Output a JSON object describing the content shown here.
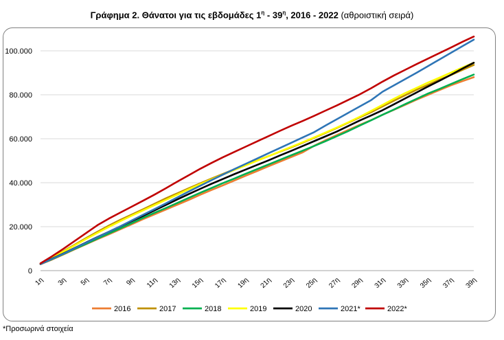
{
  "title": {
    "main": "Γράφημα 2. Θάνατοι για τις εβδομάδες 1",
    "sup1": "η",
    "mid": " - 39",
    "sup2": "η",
    "years": ", 2016 - 2022",
    "suffix": " (αθροιστική σειρά)"
  },
  "footnote": "*Προσωρινά στοιχεία",
  "chart_data": {
    "type": "line",
    "title": "Γράφημα 2. Θάνατοι για τις εβδομάδες 1η - 39η, 2016 - 2022 (αθροιστική σειρά)",
    "xlabel": "",
    "ylabel": "",
    "ylim": [
      0,
      110000
    ],
    "yticks": [
      0,
      20000,
      40000,
      60000,
      80000,
      100000
    ],
    "ytick_labels": [
      "0",
      "20.000",
      "40.000",
      "60.000",
      "80.000",
      "100.000"
    ],
    "grid": "horizontal",
    "legend_position": "bottom",
    "x": [
      "1η",
      "2η",
      "3η",
      "4η",
      "5η",
      "6η",
      "7η",
      "8η",
      "9η",
      "10η",
      "11η",
      "12η",
      "13η",
      "14η",
      "15η",
      "16η",
      "17η",
      "18η",
      "19η",
      "20η",
      "21η",
      "22η",
      "23η",
      "24η",
      "25η",
      "26η",
      "27η",
      "28η",
      "29η",
      "30η",
      "31η",
      "32η",
      "33η",
      "34η",
      "35η",
      "36η",
      "37η",
      "38η",
      "39η"
    ],
    "xtick_labels": [
      "1η",
      "3η",
      "5η",
      "7η",
      "9η",
      "11η",
      "13η",
      "15η",
      "17η",
      "19η",
      "21η",
      "23η",
      "25η",
      "27η",
      "29η",
      "31η",
      "33η",
      "35η",
      "37η",
      "39η"
    ],
    "series": [
      {
        "name": "2016",
        "color": "#ed7d31",
        "values": [
          2900,
          5000,
          7300,
          9700,
          12000,
          14300,
          16500,
          18800,
          21100,
          23400,
          25600,
          27800,
          30000,
          32200,
          34500,
          36700,
          38800,
          41000,
          43200,
          45300,
          47500,
          49600,
          51700,
          53800,
          56800,
          59300,
          61700,
          64000,
          66300,
          68500,
          70900,
          73200,
          75500,
          77800,
          80000,
          82200,
          84300,
          86200,
          88000
        ]
      },
      {
        "name": "2017",
        "color": "#bf9000",
        "values": [
          3100,
          5900,
          8800,
          11800,
          14800,
          17700,
          20500,
          23100,
          25500,
          27900,
          30400,
          32900,
          35200,
          37500,
          39700,
          41900,
          44000,
          46100,
          48100,
          50100,
          52100,
          54100,
          56100,
          58200,
          60400,
          62600,
          64900,
          67300,
          69700,
          72100,
          74700,
          77300,
          79800,
          82300,
          84600,
          86900,
          89000,
          91300,
          93600
        ]
      },
      {
        "name": "2018",
        "color": "#00b050",
        "values": [
          3000,
          5200,
          7500,
          9900,
          12200,
          14600,
          16900,
          19200,
          21600,
          24000,
          26300,
          28500,
          30800,
          33100,
          35400,
          37600,
          39800,
          41900,
          44100,
          46200,
          48300,
          50400,
          52500,
          54600,
          56700,
          58900,
          61200,
          63500,
          66000,
          68400,
          70900,
          73300,
          75800,
          78200,
          80600,
          82700,
          84900,
          87100,
          89200
        ]
      },
      {
        "name": "2019",
        "color": "#ffff00",
        "values": [
          3000,
          5700,
          8600,
          11500,
          14400,
          17200,
          19900,
          22500,
          25000,
          27400,
          29800,
          32200,
          34600,
          37000,
          39300,
          41500,
          43700,
          45800,
          47900,
          50000,
          52100,
          54200,
          56300,
          58400,
          60600,
          62800,
          65100,
          67500,
          70000,
          72700,
          75400,
          78200,
          80800,
          83200,
          85600,
          87800,
          90100,
          92400,
          94600
        ]
      },
      {
        "name": "2020",
        "color": "#000000",
        "values": [
          3000,
          5400,
          7800,
          10300,
          12800,
          15300,
          17700,
          20100,
          22500,
          24900,
          27400,
          29900,
          32400,
          34800,
          37200,
          39500,
          41700,
          43900,
          46000,
          48100,
          50200,
          52400,
          54500,
          56700,
          58900,
          61100,
          63300,
          65800,
          68300,
          70600,
          73000,
          75700,
          78400,
          81100,
          83800,
          86400,
          89100,
          91900,
          94600
        ]
      },
      {
        "name": "2021*",
        "color": "#2e75b6",
        "values": [
          3000,
          5300,
          7700,
          10200,
          12700,
          15200,
          17700,
          20200,
          22800,
          25400,
          28000,
          30600,
          33300,
          36000,
          38600,
          41200,
          43700,
          46200,
          48600,
          51000,
          53400,
          55800,
          58200,
          60600,
          63000,
          66000,
          68900,
          71800,
          74700,
          77600,
          81400,
          84300,
          87200,
          90100,
          93100,
          96100,
          99100,
          102100,
          105100
        ]
      },
      {
        "name": "2022*",
        "color": "#c00000",
        "values": [
          3300,
          6500,
          9900,
          13500,
          17100,
          20700,
          23700,
          26400,
          29100,
          31800,
          34600,
          37500,
          40500,
          43400,
          46300,
          49000,
          51600,
          54000,
          56400,
          58800,
          61200,
          63600,
          65900,
          68100,
          70400,
          72800,
          75200,
          77700,
          80200,
          83000,
          86000,
          88800,
          91400,
          94000,
          96500,
          99000,
          101500,
          104100,
          106500
        ]
      }
    ]
  }
}
